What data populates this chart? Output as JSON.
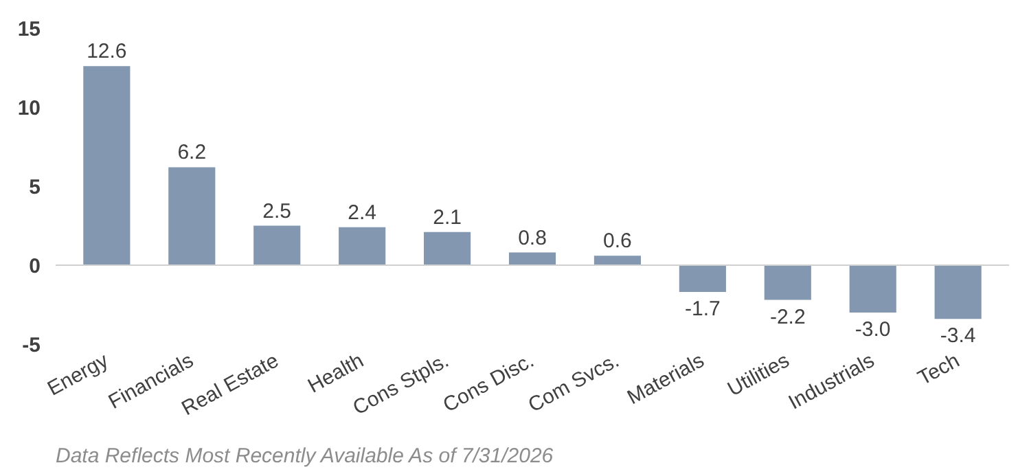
{
  "chart_data": {
    "type": "bar",
    "categories": [
      "Energy",
      "Financials",
      "Real Estate",
      "Health",
      "Cons Stpls.",
      "Cons Disc.",
      "Com Svcs.",
      "Materials",
      "Utilities",
      "Industrials",
      "Tech"
    ],
    "values": [
      12.6,
      6.2,
      2.5,
      2.4,
      2.1,
      0.8,
      0.6,
      -1.7,
      -2.2,
      -3.0,
      -3.4
    ],
    "value_labels": [
      "12.6",
      "6.2",
      "2.5",
      "2.4",
      "2.1",
      "0.8",
      "0.6",
      "-1.7",
      "-2.2",
      "-3.0",
      "-3.4"
    ],
    "color": "#8497b0",
    "ylim": [
      -5,
      15
    ],
    "yticks": [
      -5,
      0,
      5,
      10,
      15
    ],
    "ref_lines": [
      {
        "axis": "y",
        "value": 0,
        "color": "#d0d0d0"
      }
    ],
    "annotations": [
      "Data Reflects Most Recently Available As of 7/31/2026"
    ]
  }
}
